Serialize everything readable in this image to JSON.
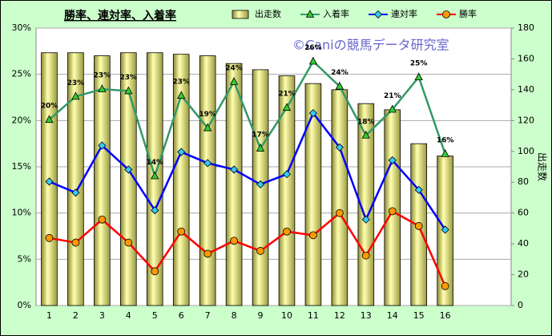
{
  "chart_data": {
    "type": "bar-line",
    "title": "勝率、連対率、入着率",
    "watermark": "©Caniの競馬データ研究室",
    "y2label": "出走数",
    "categories": [
      "1",
      "2",
      "3",
      "4",
      "5",
      "6",
      "7",
      "8",
      "9",
      "10",
      "11",
      "12",
      "13",
      "14",
      "15",
      "16",
      null,
      null
    ],
    "ylim": [
      0,
      30
    ],
    "yticks": [
      {
        "value": 0,
        "label": "0%"
      },
      {
        "value": 5,
        "label": "5%"
      },
      {
        "value": 10,
        "label": "10%"
      },
      {
        "value": 15,
        "label": "15%"
      },
      {
        "value": 20,
        "label": "20%"
      },
      {
        "value": 25,
        "label": "25%"
      },
      {
        "value": 30,
        "label": "30%"
      }
    ],
    "y2lim": [
      0,
      180
    ],
    "y2ticks": [
      0,
      20,
      40,
      60,
      80,
      100,
      120,
      140,
      160,
      180
    ],
    "grid": true,
    "series": [
      {
        "name": "出走数",
        "type": "bar",
        "axis": "y2",
        "color": "#d8d870",
        "values": [
          164,
          164,
          162,
          164,
          164,
          163,
          162,
          157,
          153,
          149,
          144,
          140,
          131,
          127,
          105,
          97,
          null,
          null
        ]
      },
      {
        "name": "入着率",
        "type": "line",
        "marker": "triangle",
        "color": "#339966",
        "marker_color": "#33cc33",
        "values": [
          20.1,
          22.6,
          23.4,
          23.2,
          14.0,
          22.7,
          19.2,
          24.2,
          17.0,
          21.4,
          26.4,
          23.7,
          18.4,
          21.2,
          24.7,
          16.4,
          null,
          null
        ],
        "value_labels": [
          "20%",
          "23%",
          "23%",
          "23%",
          "14%",
          "23%",
          "19%",
          "24%",
          "17%",
          "21%",
          "26%",
          "24%",
          "18%",
          "21%",
          "25%",
          "16%",
          null,
          null
        ]
      },
      {
        "name": "連対率",
        "type": "line",
        "marker": "diamond",
        "color": "#0000ff",
        "marker_color": "#33ccff",
        "values": [
          13.4,
          12.2,
          17.3,
          14.7,
          10.3,
          16.6,
          15.4,
          14.7,
          13.1,
          14.2,
          20.8,
          17.1,
          9.3,
          15.7,
          12.5,
          8.2,
          null,
          null
        ]
      },
      {
        "name": "勝率",
        "type": "line",
        "marker": "circle",
        "color": "#ff0000",
        "marker_color": "#ff9900",
        "values": [
          7.3,
          6.8,
          9.3,
          6.8,
          3.7,
          8.0,
          5.6,
          7.0,
          5.9,
          8.0,
          7.6,
          10.0,
          5.4,
          10.2,
          8.6,
          2.1,
          null,
          null
        ]
      }
    ]
  }
}
